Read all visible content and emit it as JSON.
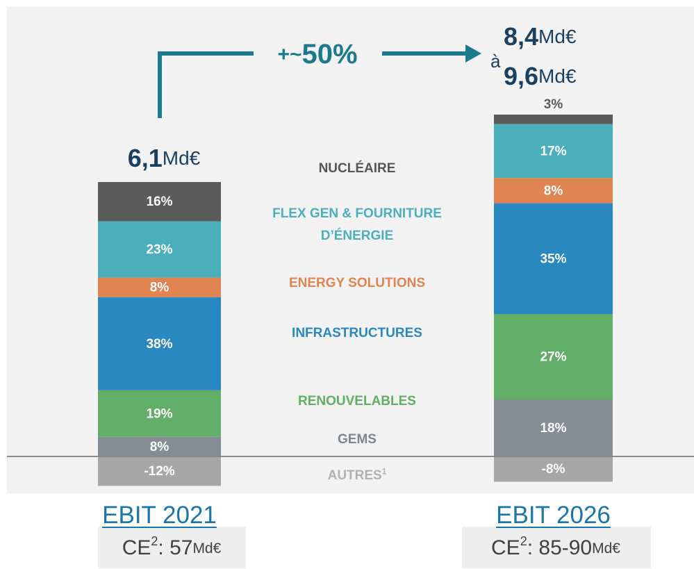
{
  "chart_data": {
    "type": "bar",
    "stacked": true,
    "categories": [
      "EBIT 2021",
      "EBIT 2026"
    ],
    "series": [
      {
        "name": "NUCLÉAIRE",
        "color": "#5b5b5b",
        "text_color": "#555555",
        "values": [
          16,
          3
        ],
        "value_labels": [
          "16%",
          "3%"
        ]
      },
      {
        "name": "FLEX GEN & FOURNITURE D’ÉNERGIE",
        "color": "#4aafbb",
        "text_color": "#4aafbb",
        "values": [
          23,
          17
        ],
        "value_labels": [
          "23%",
          "17%"
        ]
      },
      {
        "name": "ENERGY SOLUTIONS",
        "color": "#e08452",
        "text_color": "#e08452",
        "values": [
          8,
          8
        ],
        "value_labels": [
          "8%",
          "8%"
        ]
      },
      {
        "name": "INFRASTRUCTURES",
        "color": "#2a88c0",
        "text_color": "#2a88c0",
        "values": [
          38,
          35
        ],
        "value_labels": [
          "38%",
          "35%"
        ]
      },
      {
        "name": "RENOUVELABLES",
        "color": "#62ad68",
        "text_color": "#62ad68",
        "values": [
          19,
          27
        ],
        "value_labels": [
          "19%",
          "27%"
        ]
      },
      {
        "name": "GEMS",
        "color": "#858c93",
        "text_color": "#7e858c",
        "values": [
          8,
          18
        ],
        "value_labels": [
          "8%",
          "18%"
        ]
      },
      {
        "name": "AUTRES",
        "note": "1",
        "color": "#a6a6a6",
        "text_color": "#b0b0b0",
        "values": [
          -12,
          -8
        ],
        "value_labels": [
          "-12%",
          "-8%"
        ]
      }
    ],
    "unit": "Md€",
    "total_2021": {
      "value": 6.1,
      "label": "6,1"
    },
    "total_2026_low": {
      "value": 8.4,
      "label": "8,4"
    },
    "total_2026_high": {
      "value": 9.6,
      "label": "9,6"
    },
    "range_word": "à",
    "growth": {
      "prefix": "+~",
      "value": 50,
      "label": "50%"
    },
    "capital_employed": [
      {
        "prefix": "CE",
        "note": "2",
        "separator": ": ",
        "value": 57,
        "label": "57"
      },
      {
        "prefix": "CE",
        "note": "2",
        "separator": ": ",
        "label": "85-90"
      }
    ]
  }
}
